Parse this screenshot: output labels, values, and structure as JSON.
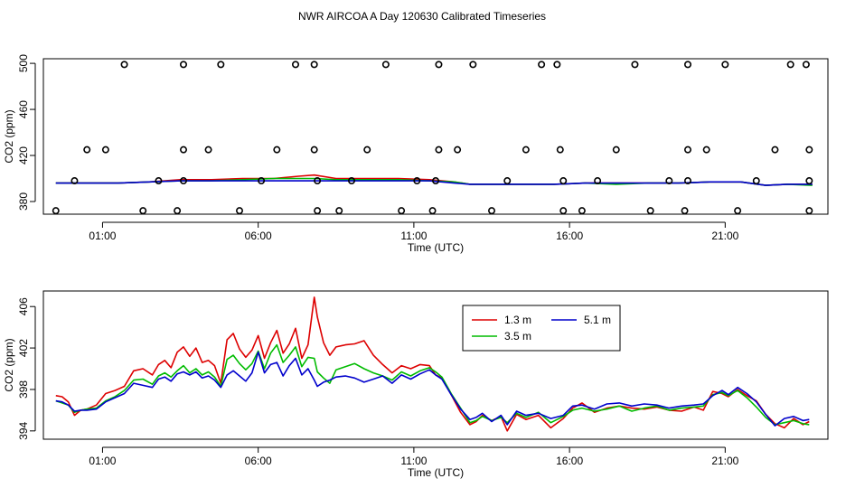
{
  "title": "NWR AIRCOA A  Day 120630  Calibrated Timeseries",
  "chart_data": [
    {
      "type": "line",
      "panel": "top",
      "xlabel": "Time (UTC)",
      "ylabel": "CO2 (ppm)",
      "xlim": [
        -0.9,
        24.3
      ],
      "ylim": [
        369,
        504
      ],
      "xticks": [
        1,
        6,
        11,
        16,
        21
      ],
      "xtick_labels": [
        "01:00",
        "06:00",
        "11:00",
        "16:00",
        "21:00"
      ],
      "yticks": [
        380,
        420,
        460,
        500
      ],
      "ytick_labels": [
        "380",
        "420",
        "460",
        "500"
      ],
      "series": [
        {
          "name": "1.3 m",
          "color": "#dd0000",
          "x": [
            -0.5,
            0.5,
            1.5,
            2.5,
            3.5,
            4.5,
            5.5,
            6.5,
            7.3,
            7.8,
            8.5,
            9.5,
            10.5,
            11.5,
            12.3,
            12.8,
            13.5,
            14.5,
            15.5,
            16.5,
            17.5,
            18.5,
            19.5,
            20.5,
            21.5,
            22.3,
            23,
            23.8
          ],
          "values": [
            396,
            396,
            396,
            397,
            399,
            399,
            400,
            400,
            402,
            403,
            400,
            400,
            400,
            399,
            397,
            395,
            395,
            395,
            395,
            396,
            396,
            396,
            396,
            397,
            397,
            394,
            395,
            395
          ]
        },
        {
          "name": "3.5 m",
          "color": "#00bb00",
          "x": [
            -0.5,
            0.5,
            1.5,
            2.5,
            3.5,
            4.5,
            5.5,
            6.5,
            7.3,
            7.8,
            8.5,
            9.5,
            10.5,
            11.5,
            12.3,
            12.8,
            13.5,
            14.5,
            15.5,
            16.5,
            17.5,
            18.5,
            19.5,
            20.5,
            21.5,
            22.3,
            23,
            23.8
          ],
          "values": [
            396,
            396,
            396,
            397,
            398,
            398,
            399,
            400,
            400,
            400,
            399,
            399,
            399,
            398,
            397,
            395,
            395,
            395,
            395,
            396,
            395,
            396,
            396,
            397,
            397,
            394,
            395,
            394
          ]
        },
        {
          "name": "5.1 m",
          "color": "#0000cc",
          "x": [
            -0.5,
            0.5,
            1.5,
            2.5,
            3.5,
            4.5,
            5.5,
            6.5,
            7.3,
            7.8,
            8.5,
            9.5,
            10.5,
            11.5,
            12.3,
            12.8,
            13.5,
            14.5,
            15.5,
            16.5,
            17.5,
            18.5,
            19.5,
            20.5,
            21.5,
            22.3,
            23,
            23.8
          ],
          "values": [
            396,
            396,
            396,
            397,
            398,
            398,
            398,
            398,
            398,
            398,
            398,
            398,
            398,
            398,
            396,
            395,
            395,
            395,
            395,
            396,
            396,
            396,
            396,
            397,
            397,
            394,
            395,
            395
          ]
        }
      ],
      "calibration_points": [
        {
          "x": 0.1,
          "y": 398
        },
        {
          "x": -0.5,
          "y": 372
        },
        {
          "x": 0.5,
          "y": 425
        },
        {
          "x": 1.1,
          "y": 425
        },
        {
          "x": 1.7,
          "y": 499
        },
        {
          "x": 2.3,
          "y": 372
        },
        {
          "x": 2.8,
          "y": 398
        },
        {
          "x": 3.4,
          "y": 372
        },
        {
          "x": 3.6,
          "y": 398
        },
        {
          "x": 3.6,
          "y": 425
        },
        {
          "x": 3.6,
          "y": 499
        },
        {
          "x": 4.4,
          "y": 425
        },
        {
          "x": 4.8,
          "y": 499
        },
        {
          "x": 5.4,
          "y": 372
        },
        {
          "x": 6.1,
          "y": 398
        },
        {
          "x": 6.6,
          "y": 425
        },
        {
          "x": 7.2,
          "y": 499
        },
        {
          "x": 7.8,
          "y": 425
        },
        {
          "x": 7.8,
          "y": 499
        },
        {
          "x": 7.9,
          "y": 398
        },
        {
          "x": 7.9,
          "y": 372
        },
        {
          "x": 8.6,
          "y": 372
        },
        {
          "x": 9,
          "y": 398
        },
        {
          "x": 9.5,
          "y": 425
        },
        {
          "x": 10.1,
          "y": 499
        },
        {
          "x": 10.6,
          "y": 372
        },
        {
          "x": 11.1,
          "y": 398
        },
        {
          "x": 11.6,
          "y": 372
        },
        {
          "x": 11.7,
          "y": 398
        },
        {
          "x": 11.8,
          "y": 425
        },
        {
          "x": 11.8,
          "y": 499
        },
        {
          "x": 12.4,
          "y": 425
        },
        {
          "x": 12.9,
          "y": 499
        },
        {
          "x": 13.5,
          "y": 372
        },
        {
          "x": 14,
          "y": 398
        },
        {
          "x": 14.6,
          "y": 425
        },
        {
          "x": 15.1,
          "y": 499
        },
        {
          "x": 15.6,
          "y": 499
        },
        {
          "x": 15.7,
          "y": 425
        },
        {
          "x": 15.8,
          "y": 398
        },
        {
          "x": 15.8,
          "y": 372
        },
        {
          "x": 16.4,
          "y": 372
        },
        {
          "x": 16.9,
          "y": 398
        },
        {
          "x": 17.5,
          "y": 425
        },
        {
          "x": 18.1,
          "y": 499
        },
        {
          "x": 18.6,
          "y": 372
        },
        {
          "x": 19.2,
          "y": 398
        },
        {
          "x": 19.7,
          "y": 372
        },
        {
          "x": 19.8,
          "y": 398
        },
        {
          "x": 19.8,
          "y": 425
        },
        {
          "x": 19.8,
          "y": 499
        },
        {
          "x": 20.4,
          "y": 425
        },
        {
          "x": 21,
          "y": 499
        },
        {
          "x": 21.4,
          "y": 372
        },
        {
          "x": 22,
          "y": 398
        },
        {
          "x": 22.6,
          "y": 425
        },
        {
          "x": 23.1,
          "y": 499
        },
        {
          "x": 23.6,
          "y": 499
        },
        {
          "x": 23.7,
          "y": 425
        },
        {
          "x": 23.7,
          "y": 398
        },
        {
          "x": 23.7,
          "y": 372
        }
      ]
    },
    {
      "type": "line",
      "panel": "bottom",
      "xlabel": "Time (UTC)",
      "ylabel": "CO2 (ppm)",
      "xlim": [
        -0.9,
        24.3
      ],
      "ylim": [
        393.2,
        407.5
      ],
      "xticks": [
        1,
        6,
        11,
        16,
        21
      ],
      "xtick_labels": [
        "01:00",
        "06:00",
        "11:00",
        "16:00",
        "21:00"
      ],
      "yticks": [
        394,
        398,
        402,
        406
      ],
      "ytick_labels": [
        "394",
        "398",
        "402",
        "406"
      ],
      "legend": {
        "position": "top-right-center",
        "entries": [
          "1.3 m",
          "5.1 m",
          "3.5 m"
        ]
      },
      "series": [
        {
          "name": "1.3 m",
          "color": "#dd0000",
          "x": [
            -0.5,
            -0.3,
            -0.1,
            0.1,
            0.3,
            0.5,
            0.8,
            1.1,
            1.4,
            1.7,
            2.0,
            2.3,
            2.6,
            2.8,
            3.0,
            3.2,
            3.4,
            3.6,
            3.8,
            4.0,
            4.2,
            4.4,
            4.6,
            4.8,
            5.0,
            5.2,
            5.4,
            5.6,
            5.8,
            6.0,
            6.2,
            6.4,
            6.6,
            6.8,
            7.0,
            7.2,
            7.4,
            7.6,
            7.8,
            7.9,
            8.1,
            8.3,
            8.5,
            8.8,
            9.1,
            9.4,
            9.7,
            10.0,
            10.3,
            10.6,
            10.9,
            11.2,
            11.5,
            11.7,
            11.9,
            12.2,
            12.5,
            12.8,
            13.0,
            13.2,
            13.5,
            13.8,
            14.0,
            14.3,
            14.6,
            15.0,
            15.4,
            15.8,
            16.1,
            16.4,
            16.8,
            17.2,
            17.6,
            18.0,
            18.4,
            18.8,
            19.2,
            19.6,
            20.0,
            20.3,
            20.6,
            20.9,
            21.1,
            21.4,
            21.7,
            22.0,
            22.3,
            22.6,
            22.9,
            23.2,
            23.5,
            23.7
          ],
          "values": [
            397.4,
            397.3,
            396.8,
            395.5,
            396.0,
            396.1,
            396.5,
            397.6,
            397.9,
            398.3,
            399.8,
            400.0,
            399.4,
            400.4,
            400.8,
            400.1,
            401.6,
            402.1,
            401.2,
            402.0,
            400.6,
            400.8,
            400.3,
            398.6,
            402.8,
            403.4,
            401.9,
            401.1,
            401.8,
            403.2,
            401.0,
            402.5,
            403.7,
            401.5,
            402.4,
            403.9,
            401.0,
            402.3,
            406.9,
            405.0,
            402.5,
            401.3,
            402.1,
            402.3,
            402.4,
            402.7,
            401.3,
            400.4,
            399.6,
            400.3,
            400.0,
            400.4,
            400.3,
            399.4,
            399.1,
            397.5,
            395.8,
            394.6,
            394.9,
            395.5,
            395.0,
            395.4,
            394.0,
            395.6,
            395.1,
            395.5,
            394.3,
            395.2,
            396.2,
            396.7,
            395.8,
            396.2,
            396.4,
            396.2,
            396.1,
            396.3,
            396.0,
            395.9,
            396.3,
            396.0,
            397.8,
            397.6,
            397.3,
            398.0,
            397.4,
            396.9,
            395.6,
            394.7,
            394.3,
            395.2,
            394.6,
            394.9
          ]
        },
        {
          "name": "3.5 m",
          "color": "#00bb00",
          "x": [
            -0.5,
            -0.3,
            -0.1,
            0.1,
            0.3,
            0.5,
            0.8,
            1.1,
            1.4,
            1.7,
            2.0,
            2.3,
            2.6,
            2.8,
            3.0,
            3.2,
            3.4,
            3.6,
            3.8,
            4.0,
            4.2,
            4.4,
            4.6,
            4.8,
            5.0,
            5.2,
            5.4,
            5.6,
            5.8,
            6.0,
            6.2,
            6.4,
            6.6,
            6.8,
            7.0,
            7.2,
            7.4,
            7.6,
            7.8,
            7.9,
            8.1,
            8.3,
            8.5,
            8.8,
            9.1,
            9.4,
            9.7,
            10.0,
            10.3,
            10.6,
            10.9,
            11.2,
            11.5,
            11.7,
            11.9,
            12.2,
            12.5,
            12.8,
            13.0,
            13.2,
            13.5,
            13.8,
            14.0,
            14.3,
            14.6,
            15.0,
            15.4,
            15.8,
            16.1,
            16.4,
            16.8,
            17.2,
            17.6,
            18.0,
            18.4,
            18.8,
            19.2,
            19.6,
            20.0,
            20.3,
            20.6,
            20.9,
            21.1,
            21.4,
            21.7,
            22.0,
            22.3,
            22.6,
            22.9,
            23.2,
            23.5,
            23.7
          ],
          "values": [
            396.9,
            396.7,
            396.5,
            395.8,
            396.0,
            396.1,
            396.2,
            396.9,
            397.3,
            397.9,
            398.9,
            399.0,
            398.5,
            399.3,
            399.6,
            399.2,
            399.8,
            400.3,
            399.6,
            400.0,
            399.4,
            399.7,
            399.2,
            398.3,
            400.9,
            401.3,
            400.5,
            399.9,
            400.5,
            401.7,
            400.0,
            401.5,
            402.3,
            400.6,
            401.3,
            402.1,
            400.2,
            401.1,
            401.0,
            399.7,
            399.1,
            398.6,
            399.9,
            400.2,
            400.5,
            400.0,
            399.6,
            399.3,
            398.9,
            399.7,
            399.3,
            399.8,
            400.1,
            399.7,
            399.2,
            397.6,
            396.2,
            394.8,
            395.0,
            395.4,
            395.0,
            395.3,
            394.8,
            395.7,
            395.3,
            395.8,
            394.8,
            395.4,
            396.0,
            396.2,
            395.9,
            396.1,
            396.4,
            395.9,
            396.2,
            396.4,
            396.0,
            396.2,
            396.3,
            396.4,
            397.5,
            397.7,
            397.4,
            397.9,
            397.2,
            396.3,
            395.3,
            394.6,
            394.8,
            395.0,
            394.7,
            394.6
          ]
        },
        {
          "name": "5.1 m",
          "color": "#0000cc",
          "x": [
            -0.5,
            -0.3,
            -0.1,
            0.1,
            0.3,
            0.5,
            0.8,
            1.1,
            1.4,
            1.7,
            2.0,
            2.3,
            2.6,
            2.8,
            3.0,
            3.2,
            3.4,
            3.6,
            3.8,
            4.0,
            4.2,
            4.4,
            4.6,
            4.8,
            5.0,
            5.2,
            5.4,
            5.6,
            5.8,
            6.0,
            6.2,
            6.4,
            6.6,
            6.8,
            7.0,
            7.2,
            7.4,
            7.6,
            7.8,
            7.9,
            8.1,
            8.3,
            8.5,
            8.8,
            9.1,
            9.4,
            9.7,
            10.0,
            10.3,
            10.6,
            10.9,
            11.2,
            11.5,
            11.7,
            11.9,
            12.2,
            12.5,
            12.8,
            13.0,
            13.2,
            13.5,
            13.8,
            14.0,
            14.3,
            14.6,
            15.0,
            15.4,
            15.8,
            16.1,
            16.4,
            16.8,
            17.2,
            17.6,
            18.0,
            18.4,
            18.8,
            19.2,
            19.6,
            20.0,
            20.3,
            20.6,
            20.9,
            21.1,
            21.4,
            21.7,
            22.0,
            22.3,
            22.6,
            22.9,
            23.2,
            23.5,
            23.7
          ],
          "values": [
            396.9,
            396.8,
            396.5,
            395.9,
            396.0,
            396.0,
            396.1,
            396.8,
            397.2,
            397.6,
            398.6,
            398.4,
            398.2,
            399.0,
            399.2,
            398.8,
            399.5,
            399.7,
            399.4,
            399.7,
            399.1,
            399.3,
            398.9,
            398.2,
            399.4,
            399.8,
            399.3,
            398.8,
            399.6,
            401.6,
            399.6,
            400.4,
            400.6,
            399.3,
            400.3,
            401.0,
            399.4,
            400.0,
            398.9,
            398.3,
            398.7,
            398.9,
            399.2,
            399.3,
            399.1,
            398.7,
            399.0,
            399.3,
            398.6,
            399.4,
            399.0,
            399.5,
            399.9,
            399.4,
            399.0,
            397.5,
            396.1,
            395.1,
            395.3,
            395.7,
            394.9,
            395.5,
            394.6,
            395.9,
            395.5,
            395.7,
            395.2,
            395.5,
            396.4,
            396.5,
            396.1,
            396.6,
            396.7,
            396.4,
            396.6,
            396.5,
            396.2,
            396.4,
            396.5,
            396.6,
            397.4,
            397.9,
            397.5,
            398.2,
            397.6,
            396.8,
            395.6,
            394.5,
            395.2,
            395.4,
            395.0,
            395.1
          ]
        }
      ]
    }
  ]
}
